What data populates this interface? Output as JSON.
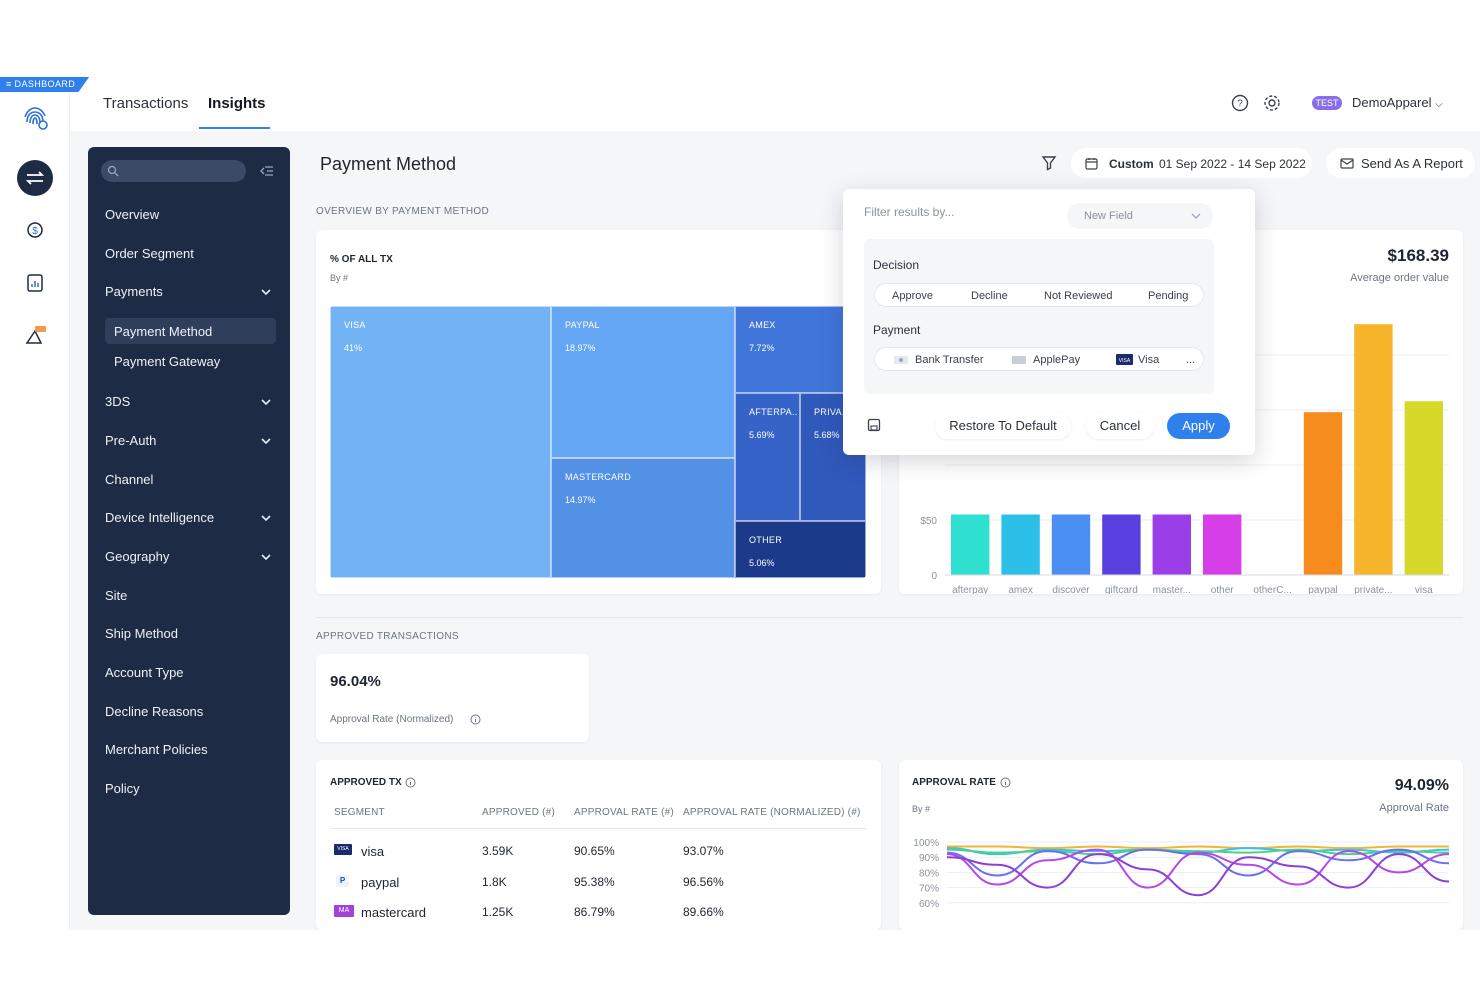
{
  "corner_tag": "≡ DASHBOARD",
  "top_tabs": [
    {
      "label": "Transactions"
    },
    {
      "label": "Insights"
    }
  ],
  "header": {
    "env_badge": "TEST",
    "org": "DemoApparel"
  },
  "sidebar": {
    "items": [
      {
        "label": "Overview"
      },
      {
        "label": "Order Segment"
      },
      {
        "label": "Payments"
      },
      {
        "label": "Payment Method"
      },
      {
        "label": "Payment Gateway"
      },
      {
        "label": "3DS"
      },
      {
        "label": "Pre-Auth"
      },
      {
        "label": "Channel"
      },
      {
        "label": "Device Intelligence"
      },
      {
        "label": "Geography"
      },
      {
        "label": "Site"
      },
      {
        "label": "Ship Method"
      },
      {
        "label": "Account Type"
      },
      {
        "label": "Decline Reasons"
      },
      {
        "label": "Merchant Policies"
      },
      {
        "label": "Policy"
      }
    ]
  },
  "page": {
    "title": "Payment Method",
    "date_mode": "Custom",
    "date_range": "01 Sep 2022 - 14 Sep 2022",
    "send_report": "Send As A Report",
    "overview_label": "OVERVIEW BY PAYMENT METHOD",
    "approved_label": "APPROVED TRANSACTIONS"
  },
  "treemap": {
    "title": "% OF ALL TX",
    "subtitle": "By #",
    "tiles": [
      {
        "name": "VISA",
        "pct": "41%",
        "color": "#72b3f6"
      },
      {
        "name": "PAYPAL",
        "pct": "18.97%",
        "color": "#64a5f4"
      },
      {
        "name": "MASTERCARD",
        "pct": "14.97%",
        "color": "#5391e6"
      },
      {
        "name": "AMEX",
        "pct": "7.72%",
        "color": "#4076d9"
      },
      {
        "name": "AFTERPA..",
        "pct": "5.69%",
        "color": "#3563c7"
      },
      {
        "name": "PRIVA..",
        "pct": "5.68%",
        "color": "#2f59bb"
      },
      {
        "name": "OTHER",
        "pct": "5.06%",
        "color": "#1b3a8a"
      }
    ]
  },
  "aov": {
    "value": "$168.39",
    "label": "Average order value"
  },
  "chart_data": [
    {
      "type": "bar",
      "categories": [
        "afterpay",
        "amex",
        "discover",
        "giftcard",
        "master...",
        "other",
        "otherC...",
        "paypal",
        "private...",
        "visa"
      ],
      "values": [
        55,
        55,
        55,
        55,
        55,
        55,
        0,
        148,
        228,
        158
      ],
      "colors": [
        "#2fe0d0",
        "#2cc0e8",
        "#4b8ff2",
        "#5a3fe0",
        "#9a3fe8",
        "#d63fe8",
        "#cccccc",
        "#f78c1e",
        "#f6b52a",
        "#d7d92a"
      ],
      "ytick_labels": [
        "$50",
        "0"
      ],
      "ylim": [
        0,
        250
      ]
    },
    {
      "type": "line",
      "title": "APPROVAL RATE",
      "subtitle": "By #",
      "ytick_labels": [
        "100%",
        "90%",
        "80%",
        "70%",
        "60%"
      ],
      "ylim": [
        60,
        100
      ],
      "series": [
        {
          "color": "#f2b433",
          "values": [
            97,
            97,
            96,
            97,
            96,
            97,
            96,
            97,
            96,
            97,
            97
          ]
        },
        {
          "color": "#39c2e6",
          "values": [
            96,
            92,
            95,
            94,
            95,
            93,
            96,
            94,
            95,
            93,
            95
          ]
        },
        {
          "color": "#4ed08a",
          "values": [
            95,
            93,
            94,
            92,
            95,
            94,
            93,
            95,
            92,
            94,
            93
          ]
        },
        {
          "color": "#6a6ff0",
          "values": [
            93,
            78,
            94,
            86,
            95,
            92,
            78,
            94,
            88,
            95,
            86
          ]
        },
        {
          "color": "#b847e8",
          "values": [
            92,
            72,
            88,
            95,
            70,
            93,
            85,
            72,
            94,
            80,
            92
          ]
        },
        {
          "color": "#8e3fd4",
          "values": [
            90,
            85,
            70,
            92,
            82,
            65,
            90,
            84,
            70,
            92,
            74
          ]
        }
      ]
    }
  ],
  "approval_summary": {
    "value": "96.04%",
    "label": "Approval Rate (Normalized)"
  },
  "approved_tx": {
    "title": "APPROVED TX",
    "columns": [
      "SEGMENT",
      "APPROVED (#)",
      "APPROVAL RATE (#)",
      "APPROVAL RATE (NORMALIZED) (#)"
    ],
    "rows": [
      {
        "badge": "VISA",
        "segment": "visa",
        "approved": "3.59K",
        "rate": "90.65%",
        "norm": "93.07%"
      },
      {
        "badge": "P",
        "segment": "paypal",
        "approved": "1.8K",
        "rate": "95.38%",
        "norm": "96.56%"
      },
      {
        "badge": "MA",
        "segment": "mastercard",
        "approved": "1.25K",
        "rate": "86.79%",
        "norm": "89.66%"
      }
    ]
  },
  "approval_rate": {
    "value": "94.09%",
    "label": "Approval Rate"
  },
  "filter_popup": {
    "placeholder": "Filter results by...",
    "new_field": "New Field",
    "decision_label": "Decision",
    "decisions": [
      "Approve",
      "Decline",
      "Not Reviewed",
      "Pending"
    ],
    "payment_label": "Payment",
    "payments": [
      "Bank Transfer",
      "ApplePay",
      "Visa",
      "..."
    ],
    "restore": "Restore To Default",
    "cancel": "Cancel",
    "apply": "Apply"
  }
}
